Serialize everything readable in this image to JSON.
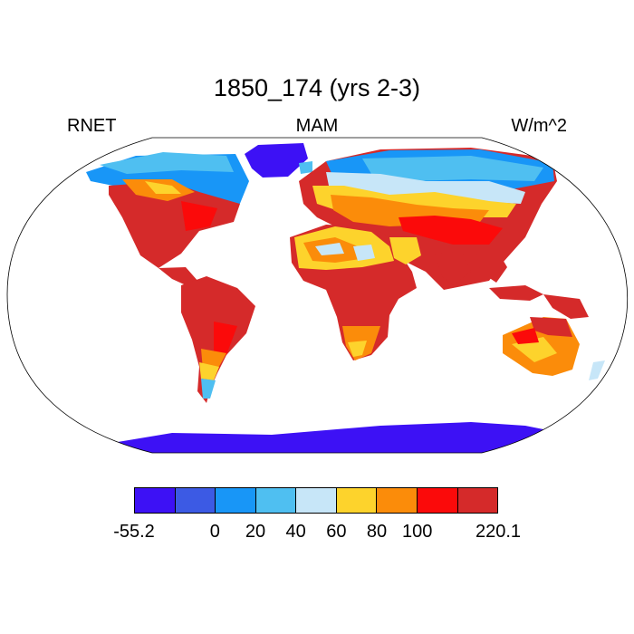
{
  "title": "1850_174 (yrs 2-3)",
  "left_label": "RNET",
  "center_label": "MAM",
  "right_label": "W/m^2",
  "colorbar": {
    "colors": [
      "#3d11f5",
      "#3c5ae4",
      "#1896f7",
      "#4fbff1",
      "#c7e6f8",
      "#fdd32c",
      "#fb8c0a",
      "#fb0a0a",
      "#d52a2a"
    ],
    "tick_labels": [
      "-55.2",
      "0",
      "20",
      "40",
      "60",
      "80",
      "100",
      "220.1"
    ]
  }
}
